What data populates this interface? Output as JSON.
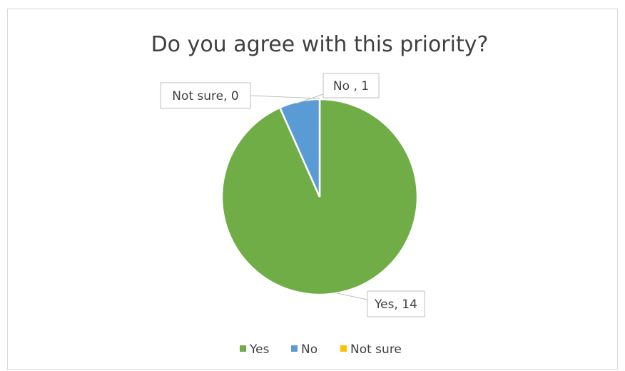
{
  "chart_data": {
    "type": "pie",
    "title": "Do you agree with this priority?",
    "categories": [
      "Yes",
      "No",
      "Not sure"
    ],
    "values": [
      14,
      1,
      0
    ],
    "colors": [
      "#70ad47",
      "#5b9bd5",
      "#ffc000"
    ],
    "data_labels": [
      "Yes, 14",
      "No , 1",
      "Not sure, 0"
    ],
    "legend_position": "bottom"
  }
}
